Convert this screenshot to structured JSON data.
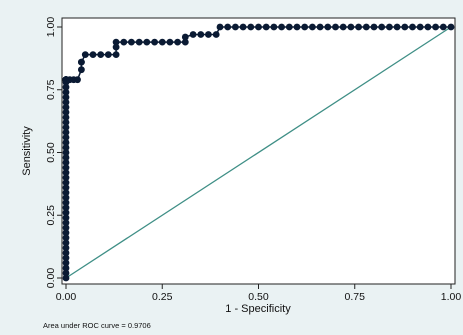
{
  "chart_data": {
    "type": "line",
    "xlabel": "1 - Specificity",
    "ylabel": "Sensitivity",
    "xlim": [
      0,
      1
    ],
    "ylim": [
      0,
      1
    ],
    "x_ticks": [
      "0.00",
      "0.25",
      "0.50",
      "0.75",
      "1.00"
    ],
    "y_ticks": [
      "0.00",
      "0.25",
      "0.50",
      "0.75",
      "1.00"
    ],
    "grid": false,
    "legend": "none",
    "note": "Area under ROC curve = 0.9706",
    "series": [
      {
        "kind": "roc-curve",
        "color": "#0a1a33",
        "marker": "filled-circle",
        "x": [
          0,
          0,
          0,
          0,
          0,
          0,
          0,
          0,
          0,
          0,
          0,
          0,
          0,
          0,
          0,
          0,
          0,
          0,
          0,
          0,
          0,
          0,
          0,
          0,
          0,
          0,
          0,
          0,
          0,
          0,
          0,
          0,
          0,
          0,
          0,
          0,
          0,
          0,
          0,
          0,
          0,
          0,
          0,
          0,
          0,
          0,
          0,
          0,
          0,
          0.01,
          0.02,
          0.03,
          0.04,
          0.04,
          0.04,
          0.05,
          0.07,
          0.09,
          0.11,
          0.13,
          0.13,
          0.13,
          0.15,
          0.17,
          0.19,
          0.21,
          0.23,
          0.25,
          0.27,
          0.29,
          0.31,
          0.31,
          0.33,
          0.35,
          0.37,
          0.39,
          0.4,
          0.42,
          0.44,
          0.46,
          0.48,
          0.5,
          0.52,
          0.54,
          0.56,
          0.58,
          0.6,
          0.62,
          0.64,
          0.66,
          0.68,
          0.7,
          0.72,
          0.74,
          0.76,
          0.78,
          0.8,
          0.82,
          0.84,
          0.86,
          0.88,
          0.9,
          0.92,
          0.94,
          0.96,
          0.98,
          1.0
        ],
        "y": [
          0,
          0.02,
          0.04,
          0.06,
          0.08,
          0.1,
          0.12,
          0.14,
          0.16,
          0.18,
          0.2,
          0.22,
          0.24,
          0.26,
          0.28,
          0.3,
          0.32,
          0.34,
          0.36,
          0.38,
          0.4,
          0.42,
          0.44,
          0.46,
          0.48,
          0.5,
          0.52,
          0.54,
          0.56,
          0.58,
          0.6,
          0.62,
          0.64,
          0.66,
          0.68,
          0.7,
          0.72,
          0.74,
          0.76,
          0.78,
          0.79,
          0.79,
          0.79,
          0.79,
          0.79,
          0.79,
          0.79,
          0.79,
          0.79,
          0.79,
          0.79,
          0.79,
          0.83,
          0.86,
          0.86,
          0.89,
          0.89,
          0.89,
          0.89,
          0.89,
          0.92,
          0.94,
          0.94,
          0.94,
          0.94,
          0.94,
          0.94,
          0.94,
          0.94,
          0.94,
          0.94,
          0.96,
          0.97,
          0.97,
          0.97,
          0.97,
          1.0,
          1,
          1,
          1,
          1,
          1,
          1,
          1,
          1,
          1,
          1,
          1,
          1,
          1,
          1,
          1,
          1,
          1,
          1,
          1,
          1,
          1,
          1,
          1,
          1,
          1,
          1,
          1,
          1,
          1,
          1
        ]
      },
      {
        "kind": "reference-line",
        "color": "#3f8f86",
        "x": [
          0,
          1
        ],
        "y": [
          0,
          1
        ]
      }
    ]
  }
}
